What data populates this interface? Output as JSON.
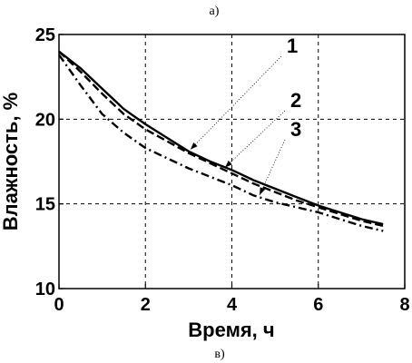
{
  "caption_top": "а)",
  "caption_bottom": "в)",
  "chart_data": {
    "type": "line",
    "title": "",
    "xlabel": "Время, ч",
    "ylabel": "Влажность, %",
    "xlim": [
      0,
      8
    ],
    "ylim": [
      10,
      25
    ],
    "xticks": [
      0,
      2,
      4,
      6,
      8
    ],
    "yticks": [
      10,
      15,
      20,
      25
    ],
    "grid": true,
    "series": [
      {
        "name": "1",
        "dash": "solid",
        "x": [
          0,
          0.5,
          1,
          1.5,
          2,
          2.5,
          3,
          3.5,
          4,
          4.5,
          5,
          5.5,
          6,
          6.5,
          7,
          7.5
        ],
        "y": [
          24,
          23.0,
          21.8,
          20.6,
          19.7,
          18.9,
          18.1,
          17.5,
          17.0,
          16.4,
          15.9,
          15.4,
          14.9,
          14.5,
          14.1,
          13.8
        ]
      },
      {
        "name": "2",
        "dash": "dashed",
        "x": [
          0,
          0.5,
          1,
          1.5,
          2,
          2.5,
          3,
          3.5,
          4,
          4.5,
          5,
          5.5,
          6,
          6.5,
          7,
          7.5
        ],
        "y": [
          24,
          22.8,
          21.5,
          20.3,
          19.4,
          18.7,
          18.0,
          17.4,
          16.8,
          16.2,
          15.7,
          15.2,
          14.8,
          14.4,
          14.0,
          13.7
        ]
      },
      {
        "name": "3",
        "dash": "dashdot",
        "x": [
          0,
          0.5,
          1,
          1.5,
          2,
          2.5,
          3,
          3.5,
          4,
          4.5,
          5,
          5.5,
          6,
          6.5,
          7,
          7.5
        ],
        "y": [
          23.8,
          22.0,
          20.3,
          19.2,
          18.3,
          17.7,
          17.1,
          16.6,
          16.1,
          15.5,
          15.1,
          14.8,
          14.5,
          14.1,
          13.7,
          13.4
        ]
      }
    ],
    "annotations": [
      {
        "label": "1",
        "series": 0,
        "at_x": 3.0
      },
      {
        "label": "2",
        "series": 1,
        "at_x": 3.8
      },
      {
        "label": "3",
        "series": 2,
        "at_x": 4.6
      }
    ]
  }
}
